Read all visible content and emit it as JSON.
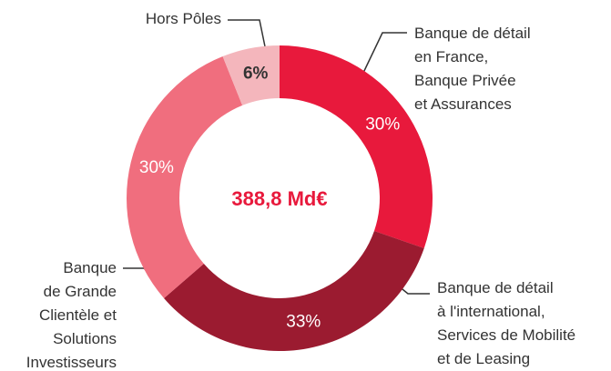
{
  "chart_data": {
    "type": "donut",
    "center_label": "388,8 Md€",
    "categories": [
      "Banque de détail\nen France,\nBanque Privée\net Assurances",
      "Banque de détail\nà l'international,\nServices de Mobilité\net de Leasing",
      "Banque\nde Grande\nClientèle et\nSolutions\nInvestisseurs",
      "Hors Pôles"
    ],
    "values": [
      30,
      33,
      30,
      6
    ],
    "value_labels": [
      "30%",
      "33%",
      "30%",
      "6%"
    ],
    "colors": [
      "#e8193c",
      "#9b1b30",
      "#f06e7e",
      "#f4b6bc"
    ],
    "label_colors": [
      "#ffffff",
      "#ffffff",
      "#ffffff",
      "#333333"
    ]
  }
}
